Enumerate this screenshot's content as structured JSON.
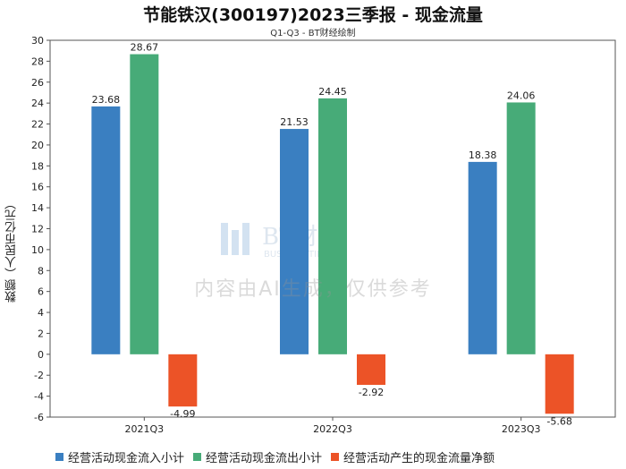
{
  "title": "节能铁汉(300197)2023三季报 - 现金流量",
  "subtitle": "Q1-Q3 - BT财经绘制",
  "watermark": {
    "notice": "内容由AI生成，仅供参考",
    "brand": "BT财经",
    "brand_sub": "BUSINESSTIMES"
  },
  "colors": {
    "series1": "#3a7fc1",
    "series2": "#47ab78",
    "series3": "#ec5327"
  },
  "chart_data": {
    "type": "bar",
    "title": "节能铁汉(300197)2023三季报 - 现金流量",
    "subtitle": "Q1-Q3 - BT财经绘制",
    "ylabel": "数额（人民币亿元）",
    "xlabel": "",
    "ylim": [
      -6,
      30
    ],
    "yticks": [
      30,
      28,
      26,
      24,
      22,
      20,
      18,
      16,
      14,
      12,
      10,
      8,
      6,
      4,
      2,
      0,
      -2,
      -4,
      -6
    ],
    "categories": [
      "2021Q3",
      "2022Q3",
      "2023Q3"
    ],
    "series": [
      {
        "name": "经营活动现金流入小计",
        "values": [
          23.68,
          21.53,
          18.38
        ],
        "labels": [
          "23.68",
          "21.53",
          "18.38"
        ]
      },
      {
        "name": "经营活动现金流出小计",
        "values": [
          28.67,
          24.45,
          24.06
        ],
        "labels": [
          "28.67",
          "24.45",
          "24.06"
        ]
      },
      {
        "name": "经营活动产生的现金流量净额",
        "values": [
          -4.99,
          -2.92,
          -5.68
        ],
        "labels": [
          "-4.99",
          "-2.92",
          "-5.68"
        ]
      }
    ],
    "legend_position": "bottom",
    "grid": false
  }
}
